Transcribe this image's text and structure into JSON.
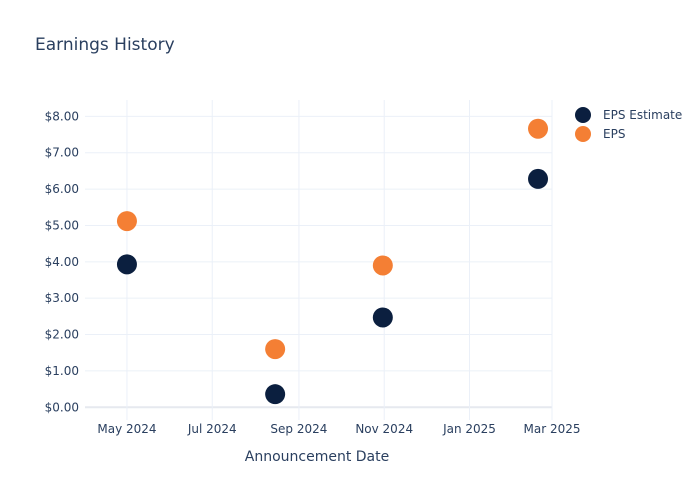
{
  "chart_data": {
    "type": "scatter",
    "title": "Earnings History",
    "xlabel": "Announcement Date",
    "ylabel": "",
    "x_axis": {
      "kind": "date",
      "range": [
        "2024-04-01",
        "2025-03-01"
      ],
      "ticks": [
        {
          "date": "2024-05-01",
          "label": "May 2024"
        },
        {
          "date": "2024-07-01",
          "label": "Jul 2024"
        },
        {
          "date": "2024-09-01",
          "label": "Sep 2024"
        },
        {
          "date": "2024-11-01",
          "label": "Nov 2024"
        },
        {
          "date": "2025-01-01",
          "label": "Jan 2025"
        },
        {
          "date": "2025-03-01",
          "label": "Mar 2025"
        }
      ]
    },
    "y_axis": {
      "range": [
        -0.35,
        8.45
      ],
      "ticks": [
        {
          "value": 0,
          "label": "$0.00"
        },
        {
          "value": 1,
          "label": "$1.00"
        },
        {
          "value": 2,
          "label": "$2.00"
        },
        {
          "value": 3,
          "label": "$3.00"
        },
        {
          "value": 4,
          "label": "$4.00"
        },
        {
          "value": 5,
          "label": "$5.00"
        },
        {
          "value": 6,
          "label": "$6.00"
        },
        {
          "value": 7,
          "label": "$7.00"
        },
        {
          "value": 8,
          "label": "$8.00"
        }
      ]
    },
    "grid": true,
    "legend_position": "top-right",
    "series": [
      {
        "name": "EPS Estimate",
        "color": "#0b1f3f",
        "points": [
          {
            "x": "2024-05-01",
            "y": 3.93
          },
          {
            "x": "2024-08-15",
            "y": 0.36
          },
          {
            "x": "2024-10-31",
            "y": 2.47
          },
          {
            "x": "2025-02-19",
            "y": 6.28
          }
        ]
      },
      {
        "name": "EPS",
        "color": "#f47f34",
        "points": [
          {
            "x": "2024-05-01",
            "y": 5.12
          },
          {
            "x": "2024-08-15",
            "y": 1.6
          },
          {
            "x": "2024-10-31",
            "y": 3.9
          },
          {
            "x": "2025-02-19",
            "y": 7.66
          }
        ]
      }
    ]
  }
}
